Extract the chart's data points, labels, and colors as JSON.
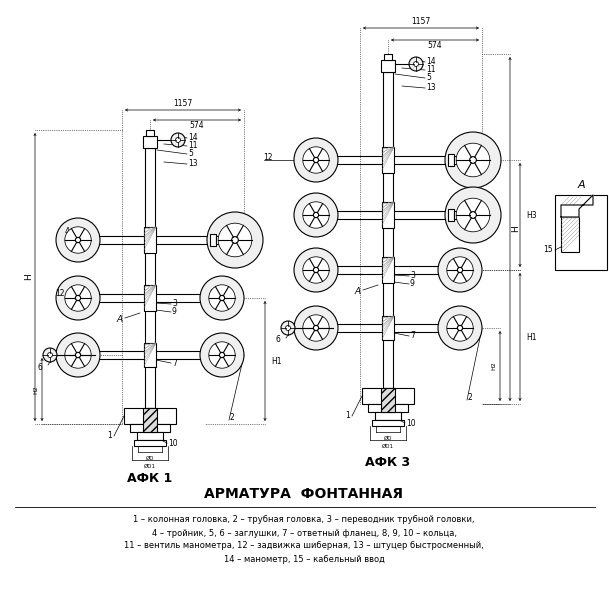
{
  "title": "АРМАТУРА  ФОНТАННАЯ",
  "subtitle_afk1": "АФК 1",
  "subtitle_afk3": "АФК 3",
  "label_A": "A",
  "legend_lines": [
    "1 – колонная головка, 2 – трубная головка, 3 – переводник трубной головки,",
    "4 – тройник, 5, 6 – заглушки, 7 – ответный фланец, 8, 9, 10 – кольца,",
    "11 – вентиль манометра, 12 – задвижка шиберная, 13 – штуцер быстросменный,",
    "14 – манометр, 15 – кабельный ввод"
  ],
  "dim_1157": "1157",
  "dim_574": "574",
  "dim_H": "H",
  "dim_H1": "H1",
  "dim_H2": "H2",
  "dim_H3": "H3",
  "dim_OD": "ØD",
  "dim_OD1": "ØD1",
  "bg_color": "#ffffff",
  "line_color": "#000000"
}
